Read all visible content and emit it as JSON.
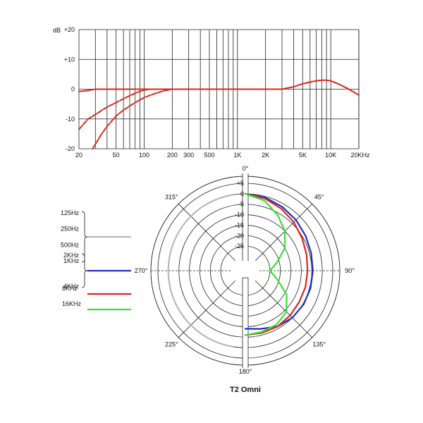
{
  "chart_data": [
    {
      "type": "line",
      "title": "",
      "y_unit_label": "dB",
      "x_scale": "log",
      "xlim": [
        20,
        20000
      ],
      "ylim": [
        -20,
        20
      ],
      "x_ticks": [
        {
          "value": 20,
          "label": "20"
        },
        {
          "value": 50,
          "label": "50"
        },
        {
          "value": 100,
          "label": "100"
        },
        {
          "value": 200,
          "label": "200"
        },
        {
          "value": 300,
          "label": "300"
        },
        {
          "value": 500,
          "label": "500"
        },
        {
          "value": 1000,
          "label": "1K"
        },
        {
          "value": 2000,
          "label": "2K"
        },
        {
          "value": 5000,
          "label": "5K"
        },
        {
          "value": 10000,
          "label": "10K"
        },
        {
          "value": 20000,
          "label": "20KHz"
        }
      ],
      "y_ticks": [
        {
          "value": 20,
          "label": "+20"
        },
        {
          "value": 10,
          "label": "+10"
        },
        {
          "value": 0,
          "label": "0"
        },
        {
          "value": -10,
          "label": "-10"
        },
        {
          "value": -20,
          "label": "-20"
        }
      ],
      "grid": true,
      "line_color": "#d9281e",
      "series": [
        {
          "style": "solid",
          "points": [
            [
              20,
              -0.8
            ],
            [
              25,
              -0.4
            ],
            [
              30,
              0
            ],
            [
              50,
              0
            ],
            [
              100,
              0
            ],
            [
              200,
              0
            ],
            [
              500,
              0
            ],
            [
              1000,
              0
            ],
            [
              2000,
              0
            ],
            [
              3000,
              0
            ],
            [
              4000,
              0.8
            ],
            [
              5000,
              1.8
            ],
            [
              6000,
              2.4
            ],
            [
              7000,
              2.8
            ],
            [
              8000,
              3.0
            ],
            [
              9000,
              3.0
            ],
            [
              10000,
              2.8
            ],
            [
              12000,
              1.8
            ],
            [
              15000,
              0.3
            ],
            [
              20000,
              -2
            ]
          ]
        },
        {
          "style": "dashed",
          "points": [
            [
              20,
              -13.5
            ],
            [
              25,
              -10
            ],
            [
              30,
              -8.5
            ],
            [
              40,
              -6
            ],
            [
              50,
              -4.5
            ],
            [
              60,
              -3.2
            ],
            [
              70,
              -2.2
            ],
            [
              85,
              -1
            ],
            [
              100,
              -0.3
            ],
            [
              115,
              0
            ],
            [
              300,
              0
            ]
          ]
        },
        {
          "style": "dashed",
          "points": [
            [
              28,
              -20
            ],
            [
              35,
              -15
            ],
            [
              40,
              -12.5
            ],
            [
              50,
              -9
            ],
            [
              60,
              -7
            ],
            [
              80,
              -4.5
            ],
            [
              100,
              -2.8
            ],
            [
              130,
              -1.5
            ],
            [
              160,
              -0.6
            ],
            [
              200,
              0
            ],
            [
              300,
              0
            ]
          ]
        }
      ]
    },
    {
      "type": "polar",
      "title": "T2 Omni",
      "rlim": [
        -30,
        5
      ],
      "r_ticks": [
        {
          "value": 5,
          "label": "+5"
        },
        {
          "value": 0,
          "label": "0"
        },
        {
          "value": -5,
          "label": "-5"
        },
        {
          "value": -10,
          "label": "-10"
        },
        {
          "value": -15,
          "label": "-15"
        },
        {
          "value": -20,
          "label": "-20"
        },
        {
          "value": -25,
          "label": "-25"
        }
      ],
      "angle_labels": [
        {
          "deg": 0,
          "label": "0°"
        },
        {
          "deg": 45,
          "label": "45°"
        },
        {
          "deg": 90,
          "label": "90°"
        },
        {
          "deg": 135,
          "label": "135°"
        },
        {
          "deg": 180,
          "label": "180°"
        },
        {
          "deg": 225,
          "label": "225°"
        },
        {
          "deg": 270,
          "label": "270°"
        },
        {
          "deg": 315,
          "label": "315°"
        }
      ],
      "legend": [
        {
          "labels": [
            "125Hz",
            "250Hz",
            "500Hz",
            "1KHz"
          ],
          "color": "#b8b8b8"
        },
        {
          "labels": [
            "2KHz",
            "4KHz"
          ],
          "color": "#1f2fbf"
        },
        {
          "labels": [
            "8KHz"
          ],
          "color": "#d9281e"
        },
        {
          "labels": [
            "16KHz"
          ],
          "color": "#35e035"
        }
      ],
      "series": [
        {
          "color": "#b8b8b8",
          "side": "left",
          "points": [
            [
              180,
              0
            ],
            [
              200,
              0
            ],
            [
              230,
              0
            ],
            [
              260,
              0
            ],
            [
              270,
              0
            ],
            [
              300,
              0
            ],
            [
              330,
              0
            ],
            [
              360,
              0
            ]
          ]
        },
        {
          "color": "#1f2fbf",
          "side": "right",
          "points": [
            [
              0,
              0
            ],
            [
              15,
              -0.5
            ],
            [
              30,
              -1.5
            ],
            [
              45,
              -2.5
            ],
            [
              60,
              -3.5
            ],
            [
              75,
              -4.2
            ],
            [
              90,
              -4.5
            ],
            [
              105,
              -4.5
            ],
            [
              120,
              -4.6
            ],
            [
              135,
              -5
            ],
            [
              150,
              -6
            ],
            [
              165,
              -8
            ],
            [
              180,
              -9
            ]
          ]
        },
        {
          "color": "#d9281e",
          "side": "right",
          "points": [
            [
              0,
              0
            ],
            [
              15,
              -1
            ],
            [
              30,
              -2.5
            ],
            [
              45,
              -4
            ],
            [
              60,
              -5.5
            ],
            [
              75,
              -6.5
            ],
            [
              90,
              -7
            ],
            [
              105,
              -7
            ],
            [
              120,
              -7
            ],
            [
              135,
              -6.5
            ],
            [
              150,
              -6
            ],
            [
              165,
              -6
            ],
            [
              180,
              -6
            ]
          ]
        },
        {
          "color": "#35e035",
          "side": "right",
          "points": [
            [
              0,
              0
            ],
            [
              15,
              -2
            ],
            [
              30,
              -6
            ],
            [
              45,
              -10
            ],
            [
              60,
              -15
            ],
            [
              75,
              -21
            ],
            [
              90,
              -25
            ],
            [
              105,
              -21
            ],
            [
              120,
              -14
            ],
            [
              135,
              -9
            ],
            [
              150,
              -7
            ],
            [
              165,
              -6.5
            ],
            [
              180,
              -6
            ]
          ]
        }
      ]
    }
  ]
}
